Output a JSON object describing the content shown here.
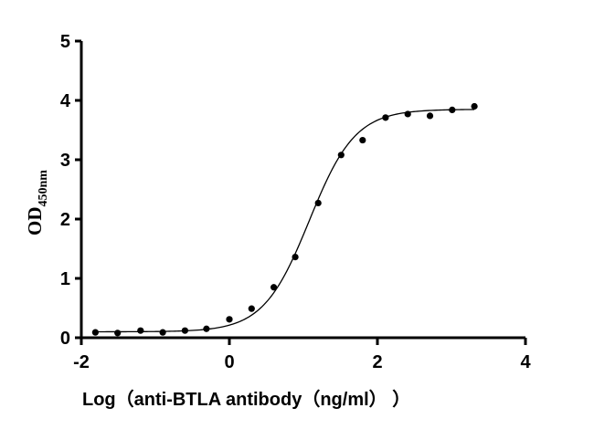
{
  "chart_data": {
    "type": "scatter",
    "title": "",
    "xlabel": "Log（anti-BTLA antibody（ng/ml）  ）",
    "ylabel": "OD",
    "ylabel_subscript": "450nm",
    "xlim": [
      -2,
      4
    ],
    "ylim": [
      0,
      5
    ],
    "xticks": [
      -2,
      0,
      2,
      4
    ],
    "yticks": [
      0,
      1,
      2,
      3,
      4,
      5
    ],
    "xtick_labels": [
      "-2",
      "0",
      "2",
      "4"
    ],
    "ytick_labels": [
      "0",
      "1",
      "2",
      "3",
      "4",
      "5"
    ],
    "grid": false,
    "legend": null,
    "series": [
      {
        "name": "OD450nm",
        "marker": "circle",
        "x": [
          -1.81,
          -1.51,
          -1.2,
          -0.9,
          -0.6,
          -0.31,
          0.0,
          0.3,
          0.6,
          0.89,
          1.2,
          1.51,
          1.8,
          2.11,
          2.41,
          2.71,
          3.01,
          3.31
        ],
        "y": [
          0.09,
          0.08,
          0.12,
          0.09,
          0.12,
          0.15,
          0.31,
          0.49,
          0.85,
          1.36,
          2.27,
          3.08,
          3.33,
          3.71,
          3.77,
          3.74,
          3.84,
          3.9
        ]
      }
    ],
    "fit_curve": {
      "model": "4PL",
      "bottom": 0.1,
      "top": 3.85,
      "log_ec50": 1.08,
      "hill_slope": 1.4,
      "x_range": [
        -1.81,
        3.31
      ]
    }
  }
}
